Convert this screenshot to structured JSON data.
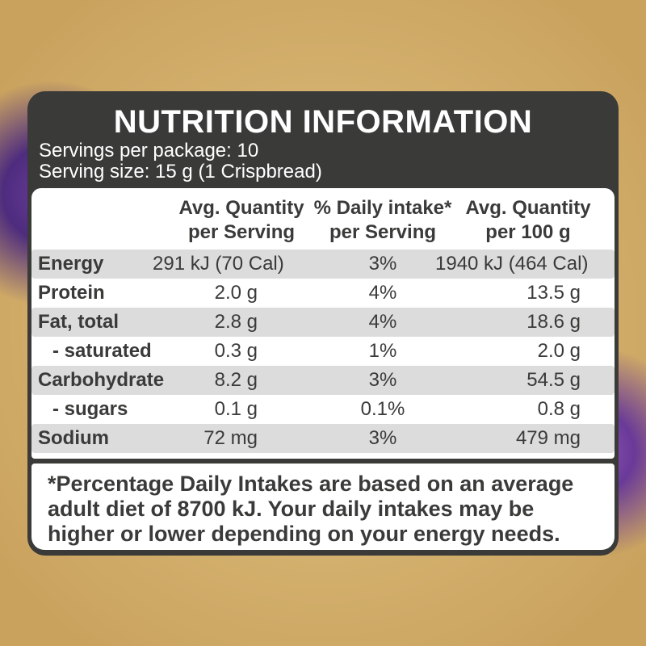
{
  "title": "NUTRITION INFORMATION",
  "servings_per_package": "Servings per package: 10",
  "serving_size": "Serving size: 15 g (1 Crispbread)",
  "columns": [
    {
      "line1": "Avg. Quantity",
      "line2": "per Serving"
    },
    {
      "line1": "% Daily intake*",
      "line2": "per Serving"
    },
    {
      "line1": "Avg. Quantity",
      "line2": "per 100 g"
    }
  ],
  "rows": [
    {
      "name": "Energy",
      "per_serving": "291 kJ (70 Cal)",
      "daily_intake": "3%",
      "per_100g": "1940 kJ (464 Cal)"
    },
    {
      "name": "Protein",
      "per_serving": "2.0 g",
      "daily_intake": "4%",
      "per_100g": "13.5 g"
    },
    {
      "name": "Fat, total",
      "per_serving": "2.8 g",
      "daily_intake": "4%",
      "per_100g": "18.6 g"
    },
    {
      "name": "- saturated",
      "per_serving": "0.3 g",
      "daily_intake": "1%",
      "per_100g": "2.0 g"
    },
    {
      "name": "Carbohydrate",
      "per_serving": "8.2 g",
      "daily_intake": "3%",
      "per_100g": "54.5 g"
    },
    {
      "name": "- sugars",
      "per_serving": "0.1 g",
      "daily_intake": "0.1%",
      "per_100g": "0.8 g"
    },
    {
      "name": "Sodium",
      "per_serving": "72 mg",
      "daily_intake": "3%",
      "per_100g": "479 mg"
    }
  ],
  "footnote": [
    "*Percentage Daily Intakes are based on an average",
    "adult diet of 8700 kJ. Your daily intakes may be",
    "higher or lower depending on your energy needs."
  ],
  "colors": {
    "label_dark": "#3a3a38",
    "row_shade": "#dcdcdc",
    "panel": "#ffffff"
  }
}
